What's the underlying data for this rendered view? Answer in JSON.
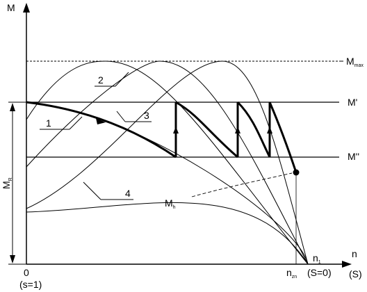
{
  "axes": {
    "y_label": "M",
    "x_label": "n",
    "x_label_paren": "(S)",
    "origin_label": "0",
    "origin_slip_label": "(s=1)"
  },
  "levels": {
    "max": {
      "main": "M",
      "sub": "max"
    },
    "m1": "M'",
    "m2": "M''"
  },
  "side": {
    "main": "M",
    "sub": "R"
  },
  "curves": {
    "c1": "1",
    "c2": "2",
    "c3": "3",
    "c4": "4"
  },
  "load": {
    "main": "M",
    "sub": "h"
  },
  "sync": {
    "main": "n",
    "sub": "1",
    "slip": "(S=0)"
  },
  "speed": {
    "main": "n",
    "sub": "zn"
  }
}
